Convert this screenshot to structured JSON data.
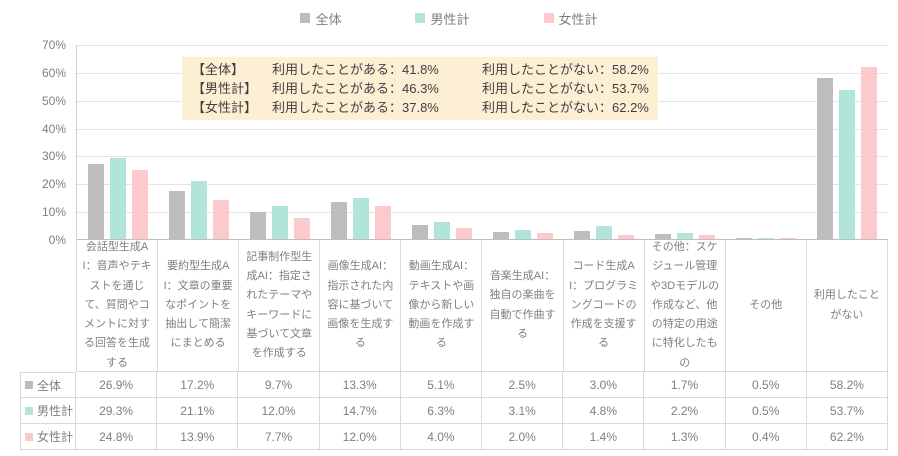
{
  "legend": {
    "items": [
      {
        "label": "全体",
        "color": "#bdbdbd"
      },
      {
        "label": "男性計",
        "color": "#b2e5da"
      },
      {
        "label": "女性計",
        "color": "#fcc9cd"
      }
    ]
  },
  "annotation": {
    "bg_color": "#fcefd4",
    "rows": [
      {
        "group": "【全体】",
        "used": "利用したことがある：41.8%",
        "not_used": "利用したことがない：58.2%"
      },
      {
        "group": "【男性計】",
        "used": "利用したことがある：46.3%",
        "not_used": "利用したことがない：53.7%"
      },
      {
        "group": "【女性計】",
        "used": "利用したことがある：37.8%",
        "not_used": "利用したことがない：62.2%"
      }
    ]
  },
  "y_axis": {
    "tick_labels": [
      "70%",
      "60%",
      "50%",
      "40%",
      "30%",
      "20%",
      "10%",
      "0%"
    ],
    "max": 70
  },
  "chart_data": {
    "type": "bar",
    "title": "",
    "categories": [
      "会話型生成AI：音声やテキストを通じて、質問やコメントに対する回答を生成する",
      "要約型生成AI：文章の重要なポイントを抽出して簡潔にまとめる",
      "記事制作型生成AI：指定されたテーマやキーワードに基づいて文章を作成する",
      "画像生成AI：指示された内容に基づいて画像を生成する",
      "動画生成AI：テキストや画像から新しい動画を作成する",
      "音楽生成AI：独自の楽曲を自動で作曲する",
      "コード生成AI：プログラミングコードの作成を支援する",
      "その他：スケジュール管理や3Dモデルの作成など、他の特定の用途に特化したもの",
      "その他",
      "利用したことがない"
    ],
    "series": [
      {
        "name": "全体",
        "color": "#bdbdbd",
        "values": [
          26.9,
          17.2,
          9.7,
          13.3,
          5.1,
          2.5,
          3.0,
          1.7,
          0.5,
          58.2
        ]
      },
      {
        "name": "男性計",
        "color": "#b2e5da",
        "values": [
          29.3,
          21.1,
          12.0,
          14.7,
          6.3,
          3.1,
          4.8,
          2.2,
          0.5,
          53.7
        ]
      },
      {
        "name": "女性計",
        "color": "#fcc9cd",
        "values": [
          24.8,
          13.9,
          7.7,
          12.0,
          4.0,
          2.0,
          1.4,
          1.3,
          0.4,
          62.2
        ]
      }
    ],
    "ylim": [
      0,
      70
    ],
    "grid": true,
    "legend_position": "top"
  },
  "table": {
    "rows": [
      {
        "label": "全体",
        "marker_color": "#bdbdbd",
        "cells": [
          "26.9%",
          "17.2%",
          "9.7%",
          "13.3%",
          "5.1%",
          "2.5%",
          "3.0%",
          "1.7%",
          "0.5%",
          "58.2%"
        ]
      },
      {
        "label": "男性計",
        "marker_color": "#b2e5da",
        "cells": [
          "29.3%",
          "21.1%",
          "12.0%",
          "14.7%",
          "6.3%",
          "3.1%",
          "4.8%",
          "2.2%",
          "0.5%",
          "53.7%"
        ]
      },
      {
        "label": "女性計",
        "marker_color": "#fcc9cd",
        "cells": [
          "24.8%",
          "13.9%",
          "7.7%",
          "12.0%",
          "4.0%",
          "2.0%",
          "1.4%",
          "1.3%",
          "0.4%",
          "62.2%"
        ]
      }
    ]
  }
}
